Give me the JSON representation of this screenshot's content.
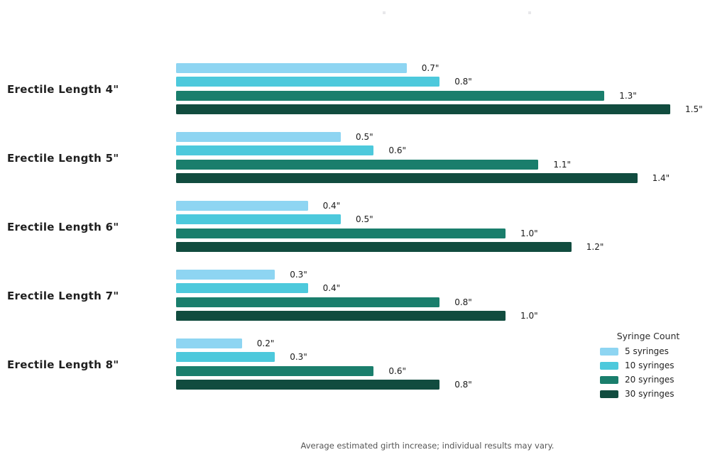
{
  "chart_data": {
    "type": "bar",
    "orientation": "horizontal",
    "title": "",
    "categories": [
      "Erectile Length 4\"",
      "Erectile Length 5\"",
      "Erectile Length 6\"",
      "Erectile Length 7\"",
      "Erectile Length 8\""
    ],
    "series": [
      {
        "name": "5 syringes",
        "color": "#8ED5F2",
        "values": [
          0.7,
          0.5,
          0.4,
          0.3,
          0.2
        ],
        "labels": [
          "0.7\"",
          "0.5\"",
          "0.4\"",
          "0.3\"",
          "0.2\""
        ]
      },
      {
        "name": "10 syringes",
        "color": "#4DC9DC",
        "values": [
          0.8,
          0.6,
          0.5,
          0.4,
          0.3
        ],
        "labels": [
          "0.8\"",
          "0.6\"",
          "0.5\"",
          "0.4\"",
          "0.3\""
        ]
      },
      {
        "name": "20 syringes",
        "color": "#1A7E6C",
        "values": [
          1.3,
          1.1,
          1.0,
          0.8,
          0.6
        ],
        "labels": [
          "1.3\"",
          "1.1\"",
          "1.0\"",
          "0.8\"",
          "0.6\""
        ]
      },
      {
        "name": "30 syringes",
        "color": "#114C3F",
        "values": [
          1.5,
          1.4,
          1.2,
          1.0,
          0.8
        ],
        "labels": [
          "1.5\"",
          "1.4\"",
          "1.2\"",
          "1.0\"",
          "0.8\""
        ]
      }
    ],
    "xlim": [
      0,
      1.55
    ],
    "grid": false,
    "value_suffix": "\"",
    "legend": {
      "title": "Syringe Count",
      "entries": [
        "5 syringes",
        "10 syringes",
        "20 syringes",
        "30 syringes"
      ],
      "position": "lower right"
    },
    "footnote": "Average estimated girth increase; individual results may vary.",
    "background": "#ffffff",
    "bar_color_accents": [
      "#8ED5F2",
      "#4DC9DC",
      "#1A7E6C",
      "#114C3F"
    ]
  }
}
